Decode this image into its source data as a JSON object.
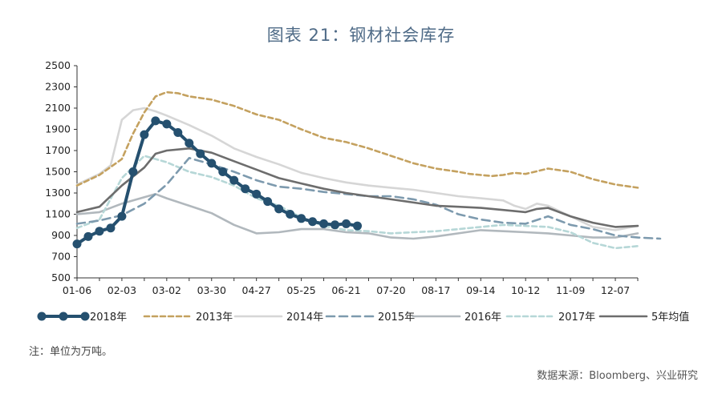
{
  "chart_data": {
    "type": "line",
    "title": "图表 21：钢材社会库存",
    "ylim": [
      500,
      2500
    ],
    "yticks": [
      500,
      700,
      900,
      1100,
      1300,
      1500,
      1700,
      1900,
      2100,
      2300,
      2500
    ],
    "xticks": [
      "01-06",
      "02-03",
      "03-02",
      "03-30",
      "04-27",
      "05-25",
      "06-21",
      "07-20",
      "08-17",
      "09-14",
      "10-12",
      "11-09",
      "12-07"
    ],
    "x_week_max": 50,
    "grid": false,
    "legend_position": "bottom",
    "series": [
      {
        "name": "2018年",
        "color": "#25506f",
        "style": "marker",
        "x": [
          0,
          1,
          2,
          3,
          4,
          5,
          6,
          7,
          8,
          9,
          10,
          11,
          12,
          13,
          14,
          15,
          16,
          17,
          18,
          19,
          20,
          21,
          22,
          23,
          24,
          25
        ],
        "y": [
          820,
          890,
          940,
          970,
          1080,
          1500,
          1850,
          1980,
          1950,
          1870,
          1770,
          1670,
          1580,
          1500,
          1420,
          1340,
          1290,
          1220,
          1150,
          1100,
          1060,
          1030,
          1010,
          1000,
          1010,
          990
        ]
      },
      {
        "name": "2013年",
        "color": "#c4a15f",
        "style": "dash",
        "x": [
          0,
          2,
          4,
          5,
          6,
          7,
          8,
          9,
          10,
          12,
          14,
          16,
          18,
          20,
          22,
          24,
          26,
          28,
          30,
          32,
          34,
          35,
          36,
          37,
          38,
          39,
          40,
          42,
          44,
          46,
          48,
          50
        ],
        "y": [
          1370,
          1470,
          1620,
          1860,
          2060,
          2210,
          2250,
          2240,
          2210,
          2180,
          2120,
          2040,
          1990,
          1900,
          1820,
          1780,
          1720,
          1650,
          1580,
          1530,
          1500,
          1480,
          1470,
          1460,
          1470,
          1490,
          1480,
          1530,
          1500,
          1430,
          1380,
          1350
        ]
      },
      {
        "name": "2014年",
        "color": "#d6d6d6",
        "style": "solid",
        "x": [
          0,
          2,
          3,
          4,
          5,
          6,
          7,
          8,
          10,
          12,
          14,
          16,
          18,
          20,
          22,
          24,
          26,
          28,
          30,
          32,
          34,
          36,
          38,
          39,
          40,
          41,
          42,
          44,
          46,
          48,
          50
        ],
        "y": [
          1380,
          1480,
          1560,
          1990,
          2080,
          2100,
          2070,
          2030,
          1940,
          1840,
          1720,
          1640,
          1570,
          1490,
          1440,
          1400,
          1370,
          1350,
          1330,
          1300,
          1270,
          1250,
          1230,
          1180,
          1150,
          1200,
          1180,
          1080,
          980,
          950,
          990
        ]
      },
      {
        "name": "2015年",
        "color": "#7d9aae",
        "style": "dash",
        "x": [
          0,
          2,
          4,
          6,
          8,
          10,
          12,
          14,
          16,
          18,
          20,
          22,
          24,
          26,
          28,
          30,
          32,
          34,
          36,
          38,
          40,
          42,
          44,
          46,
          48,
          50,
          52
        ],
        "y": [
          1010,
          1040,
          1090,
          1200,
          1380,
          1630,
          1570,
          1500,
          1420,
          1360,
          1340,
          1310,
          1290,
          1270,
          1270,
          1240,
          1190,
          1100,
          1050,
          1020,
          1010,
          1080,
          1000,
          960,
          900,
          880,
          870
        ]
      },
      {
        "name": "2016年",
        "color": "#b1b8bd",
        "style": "solid",
        "x": [
          0,
          2,
          4,
          6,
          7,
          8,
          10,
          12,
          14,
          16,
          18,
          20,
          22,
          24,
          26,
          28,
          30,
          32,
          34,
          36,
          38,
          40,
          42,
          44,
          46,
          48,
          50
        ],
        "y": [
          1100,
          1120,
          1200,
          1260,
          1290,
          1250,
          1180,
          1110,
          1000,
          920,
          930,
          960,
          960,
          930,
          920,
          880,
          870,
          890,
          920,
          950,
          940,
          930,
          920,
          900,
          880,
          880,
          920
        ]
      },
      {
        "name": "2017年",
        "color": "#b6d7d7",
        "style": "dash",
        "x": [
          0,
          2,
          4,
          6,
          8,
          10,
          12,
          14,
          16,
          18,
          20,
          22,
          24,
          26,
          28,
          30,
          32,
          34,
          36,
          38,
          40,
          42,
          44,
          46,
          48,
          50
        ],
        "y": [
          970,
          1050,
          1440,
          1650,
          1590,
          1500,
          1450,
          1370,
          1250,
          1180,
          1070,
          990,
          950,
          940,
          920,
          930,
          940,
          960,
          980,
          1000,
          990,
          980,
          930,
          830,
          780,
          800
        ]
      },
      {
        "name": "5年均值",
        "color": "#6d6d6d",
        "style": "solid",
        "x": [
          0,
          2,
          4,
          6,
          7,
          8,
          10,
          12,
          14,
          16,
          18,
          20,
          22,
          24,
          26,
          28,
          30,
          32,
          34,
          36,
          38,
          40,
          41,
          42,
          44,
          46,
          48,
          50
        ],
        "y": [
          1120,
          1170,
          1370,
          1540,
          1670,
          1700,
          1720,
          1680,
          1600,
          1520,
          1440,
          1390,
          1340,
          1300,
          1270,
          1240,
          1210,
          1180,
          1170,
          1160,
          1140,
          1120,
          1150,
          1160,
          1080,
          1020,
          980,
          990
        ]
      }
    ]
  },
  "note": "注：单位为万吨。",
  "source": "数据来源：Bloomberg、兴业研究"
}
